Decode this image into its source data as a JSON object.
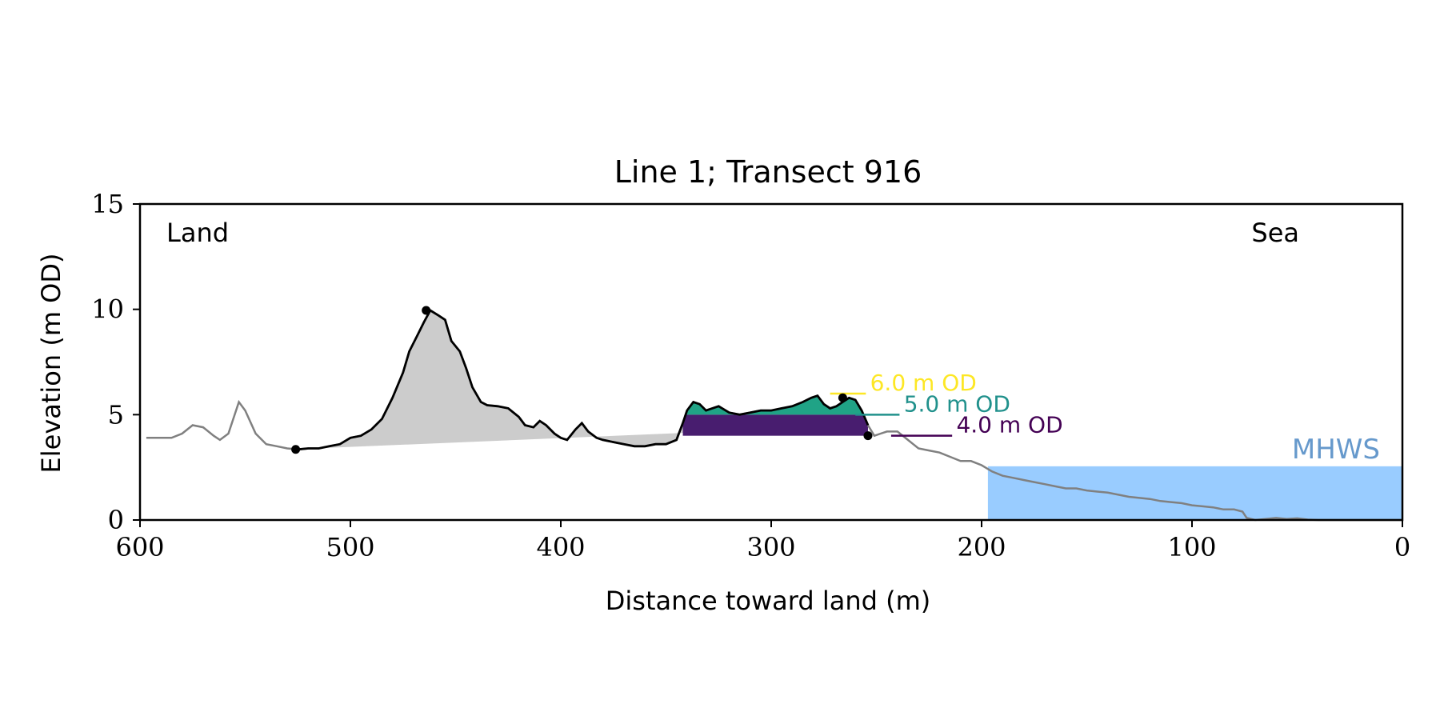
{
  "chart_data": {
    "type": "area",
    "title": "Line 1; Transect 916",
    "xlabel": "Distance toward land (m)",
    "ylabel": "Elevation (m OD)",
    "xlim": [
      600,
      0
    ],
    "ylim": [
      0,
      15
    ],
    "x_ticks": [
      600,
      500,
      400,
      300,
      200,
      100,
      0
    ],
    "y_ticks": [
      0,
      5,
      10,
      15
    ],
    "grid": false,
    "corner_labels": {
      "left": "Land",
      "right": "Sea"
    },
    "mhws": {
      "label": "MHWS",
      "elevation": 2.55,
      "from_distance": 197,
      "to_distance": 0,
      "color": "#99ccff",
      "label_color": "#6699cc"
    },
    "profile": {
      "x": [
        597,
        585,
        580,
        575,
        570,
        565,
        562,
        558,
        553,
        550,
        545,
        540,
        535,
        530,
        525,
        520,
        515,
        510,
        505,
        500,
        495,
        490,
        485,
        480,
        475,
        472,
        468,
        465,
        462,
        458,
        455,
        452,
        448,
        445,
        442,
        438,
        435,
        430,
        425,
        420,
        417,
        413,
        410,
        407,
        403,
        400,
        397,
        393,
        390,
        387,
        383,
        380,
        375,
        370,
        365,
        360,
        355,
        350,
        345,
        342,
        340,
        337,
        334,
        331,
        328,
        325,
        320,
        315,
        310,
        305,
        300,
        295,
        290,
        285,
        281,
        278,
        275,
        272,
        269,
        266,
        263,
        260,
        257,
        254,
        251,
        248,
        245,
        240,
        235,
        230,
        225,
        220,
        215,
        210,
        205,
        200,
        195,
        190,
        185,
        180,
        175,
        170,
        165,
        160,
        155,
        150,
        145,
        140,
        135,
        130,
        125,
        120,
        115,
        110,
        105,
        100,
        95,
        90,
        85,
        80,
        76,
        74,
        70,
        65,
        60,
        55,
        50,
        45,
        40,
        35,
        30,
        25,
        20,
        15,
        10,
        5,
        0
      ],
      "y": [
        3.9,
        3.9,
        4.1,
        4.5,
        4.4,
        4.0,
        3.8,
        4.1,
        5.6,
        5.2,
        4.1,
        3.6,
        3.5,
        3.4,
        3.35,
        3.4,
        3.4,
        3.5,
        3.6,
        3.9,
        4.0,
        4.3,
        4.8,
        5.8,
        7.0,
        8.0,
        8.8,
        9.4,
        9.95,
        9.7,
        9.5,
        8.5,
        8.0,
        7.2,
        6.3,
        5.6,
        5.45,
        5.4,
        5.3,
        4.9,
        4.5,
        4.4,
        4.7,
        4.5,
        4.1,
        3.9,
        3.8,
        4.3,
        4.6,
        4.2,
        3.9,
        3.8,
        3.7,
        3.6,
        3.5,
        3.5,
        3.6,
        3.6,
        3.8,
        4.6,
        5.2,
        5.6,
        5.5,
        5.2,
        5.3,
        5.4,
        5.1,
        5.0,
        5.1,
        5.2,
        5.2,
        5.3,
        5.4,
        5.6,
        5.8,
        5.9,
        5.5,
        5.3,
        5.4,
        5.6,
        5.8,
        5.7,
        5.2,
        4.5,
        4.0,
        4.1,
        4.2,
        4.2,
        3.8,
        3.4,
        3.3,
        3.2,
        3.0,
        2.8,
        2.8,
        2.6,
        2.3,
        2.1,
        2.0,
        1.9,
        1.8,
        1.7,
        1.6,
        1.5,
        1.5,
        1.4,
        1.35,
        1.3,
        1.2,
        1.1,
        1.05,
        1.0,
        0.9,
        0.85,
        0.8,
        0.7,
        0.65,
        0.6,
        0.5,
        0.5,
        0.4,
        0.1,
        0.0,
        0.05,
        0.1,
        0.05,
        0.08,
        0.02,
        0.0,
        0.0,
        0.0,
        0.0,
        0.0,
        0.0,
        0.0,
        0.0,
        0.0
      ],
      "color": "#808080"
    },
    "dunes": [
      {
        "from_distance": 526,
        "to_distance": 342,
        "toe": [
          526,
          3.35
        ],
        "crest": [
          464,
          9.95
        ],
        "fill": "#cccccc",
        "outline": "#000000"
      },
      {
        "from_distance": 342,
        "to_distance": 254,
        "toe": [
          254,
          4.0
        ],
        "crest": [
          266,
          5.8
        ],
        "fill": "#cccccc",
        "outline": "#000000"
      }
    ],
    "levels": [
      {
        "label": "6.0 m OD",
        "elevation": 6.0,
        "color": "#fde725",
        "fill": null,
        "line_from": 272,
        "line_to": 255,
        "text_distance": 253
      },
      {
        "label": "5.0 m OD",
        "elevation": 5.0,
        "color": "#21918c",
        "fill": "#20a386",
        "line_from": 260,
        "line_to": 239,
        "text_distance": 237
      },
      {
        "label": "4.0 m OD",
        "elevation": 4.0,
        "color": "#440154",
        "fill": "#481d6f",
        "line_from": 243,
        "line_to": 214,
        "text_distance": 212
      }
    ]
  }
}
